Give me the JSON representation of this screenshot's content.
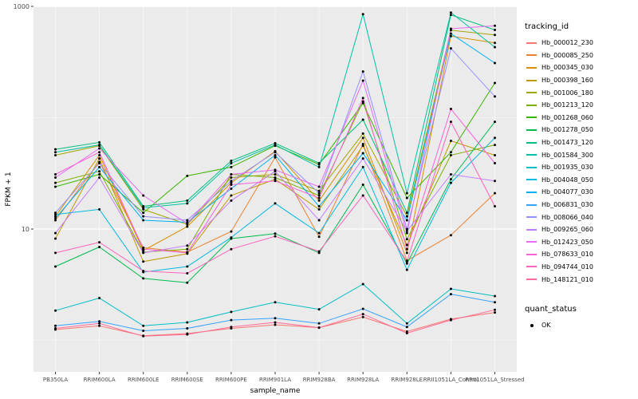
{
  "chart_data": {
    "type": "line",
    "title": "",
    "xlabel": "sample_name",
    "ylabel": "FPKM + 1",
    "y_scale": "log10",
    "ylim": [
      1,
      1000
    ],
    "y_ticks": [
      {
        "value": 1000,
        "label": "1000"
      },
      {
        "value": 10,
        "label": "10"
      }
    ],
    "y_gridlines_major": [
      10,
      1000
    ],
    "y_gridlines_minor": [
      1,
      100
    ],
    "grid": true,
    "legend_position": "right",
    "panel_background": "#EBEBEB",
    "gridline_color": "#FFFFFF",
    "point_color": "#000000",
    "tick_label_color": "#4D4D4D",
    "legend_title": "tracking_id",
    "shape_legend": {
      "title": "quant_status",
      "items": [
        {
          "label": "OK"
        }
      ]
    },
    "categories": [
      "PB350LA",
      "RRIM600LA",
      "RRIM600LE",
      "RRIM600SE",
      "RRIM600PE",
      "RRIM901LA",
      "RRIM928BA",
      "RRIM928LA",
      "RRIM928LE",
      "RRII1051LA_Control",
      "RRII1051LA_Stressed"
    ],
    "series": [
      {
        "name": "Hb_000012_230",
        "color": "#F8766D",
        "values": [
          1.25,
          1.35,
          1.1,
          1.15,
          1.28,
          1.38,
          1.3,
          1.62,
          1.2,
          1.55,
          1.78
        ]
      },
      {
        "name": "Hb_000085_250",
        "color": "#EA8331",
        "values": [
          12,
          40,
          6.8,
          6.2,
          9.5,
          44,
          8.5,
          58,
          5.2,
          8.8,
          21
        ]
      },
      {
        "name": "Hb_000345_030",
        "color": "#D89000",
        "values": [
          13,
          46,
          6.4,
          10.5,
          26,
          50,
          18,
          66,
          6.1,
          540,
          470
        ]
      },
      {
        "name": "Hb_000398_160",
        "color": "#C09B00",
        "values": [
          8.2,
          43,
          5.1,
          6.0,
          20,
          28,
          15,
          56,
          7.2,
          62,
          46
        ]
      },
      {
        "name": "Hb_001006_180",
        "color": "#A3A500",
        "values": [
          46,
          56,
          15,
          11,
          29,
          31,
          22,
          72,
          13,
          610,
          555
        ]
      },
      {
        "name": "Hb_001213_120",
        "color": "#7CAE00",
        "values": [
          26,
          33,
          6.2,
          6.6,
          31,
          29,
          20,
          140,
          8.1,
          46,
          57
        ]
      },
      {
        "name": "Hb_001268_060",
        "color": "#39B600",
        "values": [
          24,
          31,
          14,
          30,
          36,
          56,
          38,
          135,
          19,
          49,
          205
        ]
      },
      {
        "name": "Hb_001278_050",
        "color": "#00BB4E",
        "values": [
          4.6,
          6.9,
          3.6,
          3.3,
          8.2,
          9.1,
          6.1,
          25,
          4.9,
          28,
          92
        ]
      },
      {
        "name": "Hb_001473_120",
        "color": "#00BF7D",
        "values": [
          52,
          60,
          16,
          18,
          41,
          59,
          39,
          96,
          14,
          840,
          615
        ]
      },
      {
        "name": "Hb_001584_300",
        "color": "#00C1A3",
        "values": [
          49,
          57,
          15.5,
          17,
          39,
          57,
          36,
          850,
          21,
          880,
          430
        ]
      },
      {
        "name": "Hb_001935_030",
        "color": "#00BFC4",
        "values": [
          1.85,
          2.4,
          1.35,
          1.45,
          1.8,
          2.2,
          1.9,
          3.2,
          1.42,
          2.9,
          2.5
        ]
      },
      {
        "name": "Hb_004048_050",
        "color": "#00BAE0",
        "values": [
          13.5,
          15,
          4.1,
          4.6,
          8.4,
          17,
          9.2,
          36,
          4.3,
          26,
          66
        ]
      },
      {
        "name": "Hb_004077_030",
        "color": "#00B0F6",
        "values": [
          12.5,
          36,
          12,
          11.5,
          23,
          46,
          16,
          48,
          12,
          570,
          310
        ]
      },
      {
        "name": "Hb_006831_030",
        "color": "#35A2FF",
        "values": [
          1.35,
          1.48,
          1.22,
          1.28,
          1.52,
          1.58,
          1.42,
          1.92,
          1.32,
          2.6,
          2.2
        ]
      },
      {
        "name": "Hb_008066_040",
        "color": "#9590FF",
        "values": [
          14,
          39,
          13,
          12,
          27,
          49,
          21,
          260,
          10,
          420,
          155
        ]
      },
      {
        "name": "Hb_009265_060",
        "color": "#C77CFF",
        "values": [
          9.2,
          29,
          6.1,
          7.1,
          18,
          33,
          12,
          43,
          9.6,
          31,
          27
        ]
      },
      {
        "name": "Hb_012423_050",
        "color": "#E76BF3",
        "values": [
          29,
          53,
          20,
          11.2,
          31,
          34,
          24,
          215,
          9.2,
          630,
          670
        ]
      },
      {
        "name": "Hb_078633_010",
        "color": "#FA62DB",
        "values": [
          31,
          49,
          6.6,
          6.1,
          25,
          27,
          19,
          150,
          6.6,
          120,
          39
        ]
      },
      {
        "name": "Hb_094744_010",
        "color": "#FF62BC",
        "values": [
          6.1,
          7.6,
          4.2,
          4.0,
          6.6,
          8.6,
          6.3,
          20,
          5.1,
          92,
          16
        ]
      },
      {
        "name": "Hb_148121_010",
        "color": "#FF6A98",
        "values": [
          1.28,
          1.42,
          1.09,
          1.13,
          1.32,
          1.45,
          1.3,
          1.72,
          1.16,
          1.52,
          1.88
        ]
      }
    ]
  }
}
